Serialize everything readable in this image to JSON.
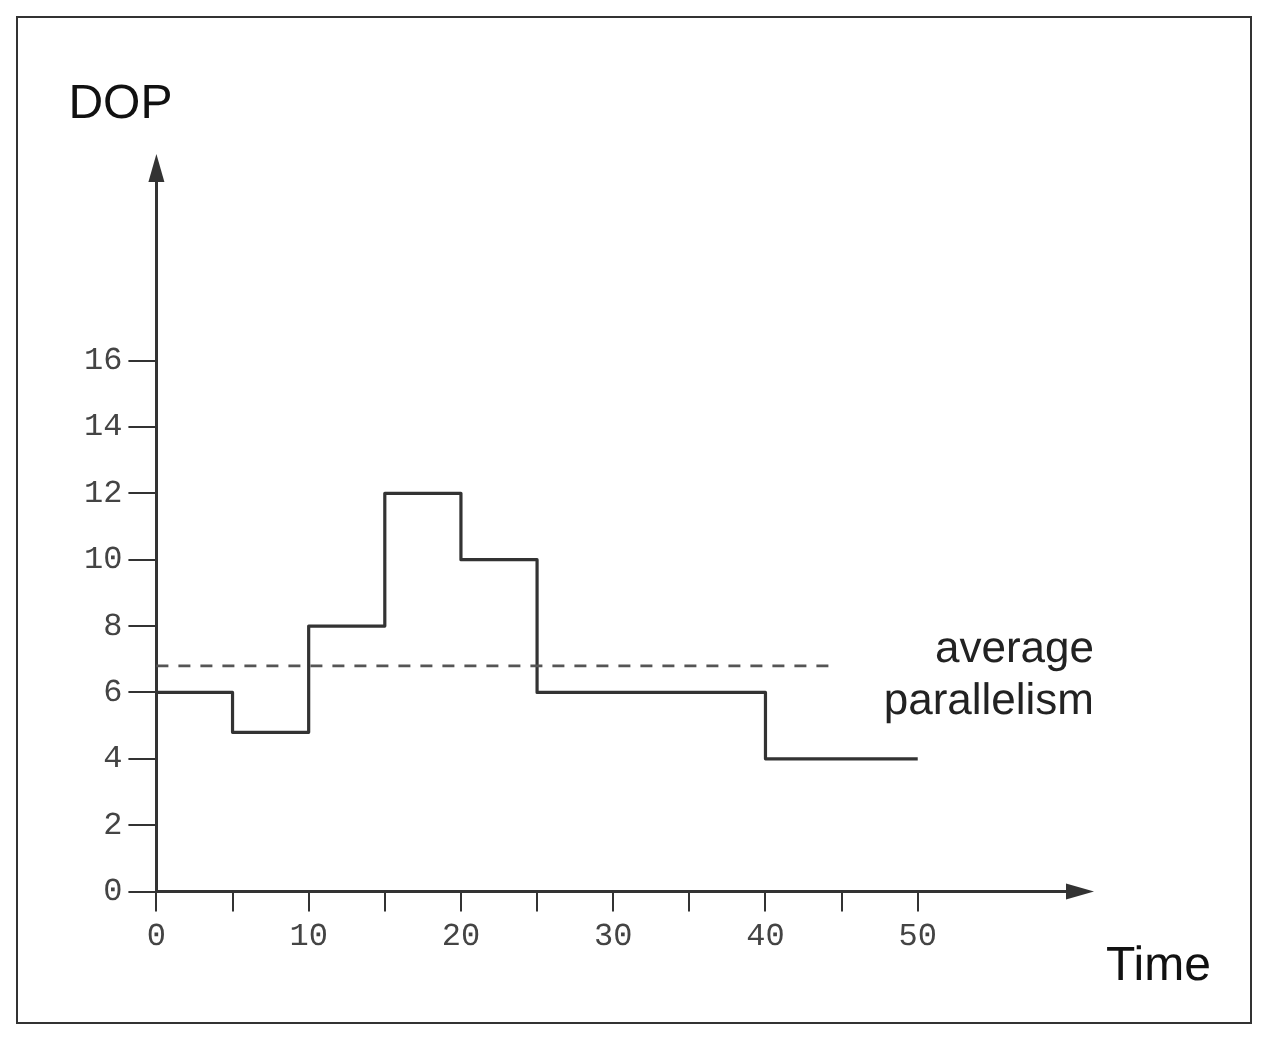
{
  "chart_data": {
    "type": "step",
    "xlabel": "Time",
    "ylabel": "DOP",
    "x": [
      0,
      5,
      10,
      15,
      20,
      25,
      40,
      50
    ],
    "series": [
      {
        "color": "#333333",
        "values": [
          6,
          4.8,
          8,
          12,
          10,
          6,
          4,
          4
        ]
      }
    ],
    "xlim": [
      0,
      60
    ],
    "ylim": [
      0,
      21.5
    ],
    "xticks": [
      0,
      {
        "value": 5,
        "label": null
      },
      10,
      {
        "value": 15,
        "label": null
      },
      20,
      {
        "value": 25,
        "label": null
      },
      30,
      {
        "value": 35,
        "label": null
      },
      40,
      {
        "value": 45,
        "label": null
      },
      50
    ],
    "yticks": [
      0,
      2,
      4,
      6,
      8,
      10,
      12,
      14,
      16
    ],
    "ref_lines": [
      {
        "axis": "y",
        "value": 6.8,
        "label": "average parallelism",
        "line_style": "dashed",
        "color": "#555555"
      }
    ],
    "grid": false,
    "legend": false,
    "marker": "none",
    "line_style": "solid"
  }
}
